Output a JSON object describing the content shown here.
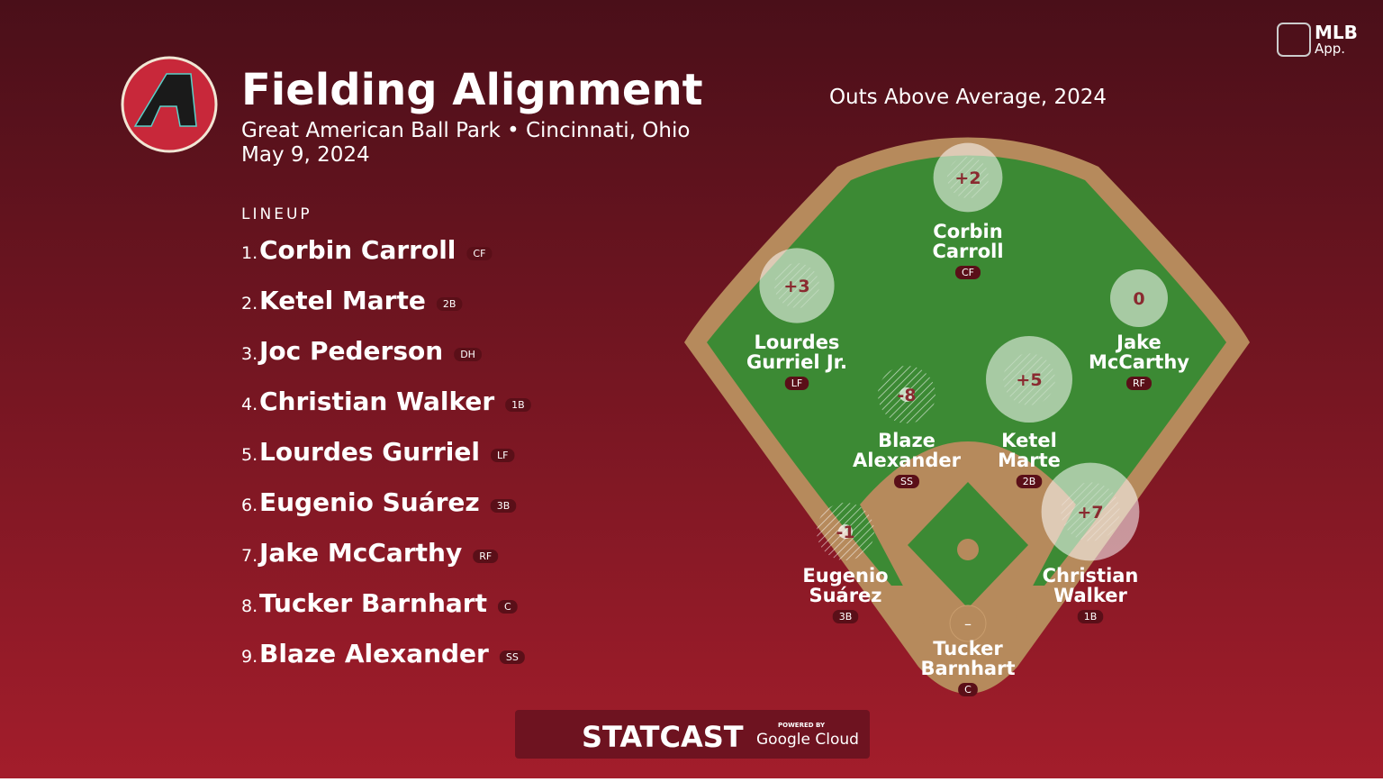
{
  "header": {
    "title": "Fielding Alignment",
    "venue": "Great American Ball Park • Cincinnati, Ohio",
    "date": "May 9, 2024"
  },
  "lineup": {
    "heading": "LINEUP",
    "players": [
      {
        "number": "1.",
        "name": "Corbin Carroll",
        "position": "CF"
      },
      {
        "number": "2.",
        "name": "Ketel Marte",
        "position": "2B"
      },
      {
        "number": "3.",
        "name": "Joc Pederson",
        "position": "DH"
      },
      {
        "number": "4.",
        "name": "Christian Walker",
        "position": "1B"
      },
      {
        "number": "5.",
        "name": "Lourdes Gurriel",
        "position": "LF"
      },
      {
        "number": "6.",
        "name": "Eugenio Suárez",
        "position": "3B"
      },
      {
        "number": "7.",
        "name": "Jake McCarthy",
        "position": "RF"
      },
      {
        "number": "8.",
        "name": "Tucker Barnhart",
        "position": "C"
      },
      {
        "number": "9.",
        "name": "Blaze Alexander",
        "position": "SS"
      }
    ]
  },
  "field": {
    "title": "Outs Above Average, 2024",
    "players": [
      {
        "name": [
          "Corbin",
          "Carroll"
        ],
        "position": "CF",
        "oaa": 2,
        "oaa_label": "+2"
      },
      {
        "name": [
          "Lourdes",
          "Gurriel Jr."
        ],
        "position": "LF",
        "oaa": 3,
        "oaa_label": "+3"
      },
      {
        "name": [
          "Jake",
          "McCarthy"
        ],
        "position": "RF",
        "oaa": 0,
        "oaa_label": "0"
      },
      {
        "name": [
          "Blaze",
          "Alexander"
        ],
        "position": "SS",
        "oaa": -8,
        "oaa_label": "-8"
      },
      {
        "name": [
          "Ketel",
          "Marte"
        ],
        "position": "2B",
        "oaa": 5,
        "oaa_label": "+5"
      },
      {
        "name": [
          "Eugenio",
          "Suárez"
        ],
        "position": "3B",
        "oaa": -1,
        "oaa_label": "-1"
      },
      {
        "name": [
          "Christian",
          "Walker"
        ],
        "position": "1B",
        "oaa": 7,
        "oaa_label": "+7"
      },
      {
        "name": [
          "Tucker",
          "Barnhart"
        ],
        "position": "C",
        "oaa": null,
        "oaa_label": "–"
      }
    ]
  },
  "branding": {
    "app": "MLB",
    "app_sub": "App.",
    "statcast": "STATCAST",
    "powered": "POWERED BY",
    "cloud": "Google Cloud"
  }
}
